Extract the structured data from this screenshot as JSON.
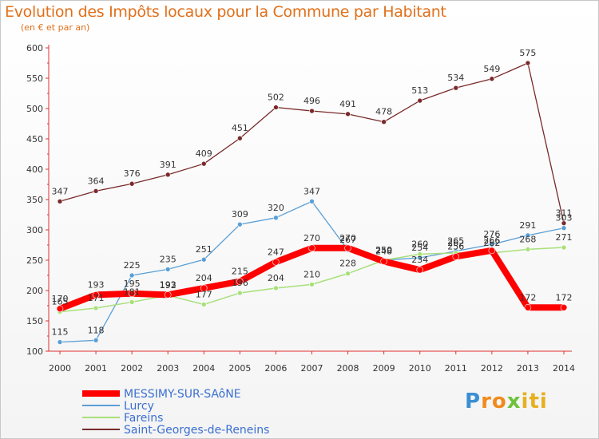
{
  "title": "Evolution des Impôts locaux pour la Commune par Habitant",
  "subtitle": "(en € et par an)",
  "logo": "Proxiti",
  "chart_data": {
    "type": "line",
    "title": "Evolution des Impôts locaux pour la Commune par Habitant",
    "subtitle": "(en € et par an)",
    "xlabel": "",
    "ylabel": "",
    "ylim": [
      100,
      600
    ],
    "yticks": [
      100,
      150,
      200,
      250,
      300,
      350,
      400,
      450,
      500,
      550,
      600
    ],
    "grid": false,
    "legend_position": "bottom",
    "categories": [
      "2000",
      "2001",
      "2002",
      "2003",
      "2004",
      "2005",
      "2006",
      "2007",
      "2008",
      "2009",
      "2010",
      "2011",
      "2012",
      "2013",
      "2014"
    ],
    "series": [
      {
        "name": "Saint-Georges-de-Reneins",
        "color": "#7a2a2a",
        "width": 1.3,
        "values": [
          347,
          364,
          376,
          391,
          409,
          451,
          502,
          496,
          491,
          478,
          513,
          534,
          549,
          575,
          311
        ]
      },
      {
        "name": "Lurcy",
        "color": "#5a9fd6",
        "width": 1.3,
        "values": [
          115,
          118,
          225,
          235,
          251,
          309,
          320,
          347,
          267,
          250,
          254,
          265,
          276,
          291,
          303
        ]
      },
      {
        "name": "Fareins",
        "color": "#a8e07a",
        "width": 1.5,
        "values": [
          165,
          171,
          181,
          192,
          177,
          196,
          204,
          210,
          228,
          250,
          260,
          262,
          262,
          268,
          271
        ]
      },
      {
        "name": "MESSIMY-SUR-SAôNE",
        "color": "#ff0000",
        "width": 8,
        "values": [
          170,
          193,
          195,
          193,
          204,
          215,
          247,
          270,
          270,
          248,
          234,
          256,
          266,
          172,
          172
        ]
      }
    ]
  }
}
